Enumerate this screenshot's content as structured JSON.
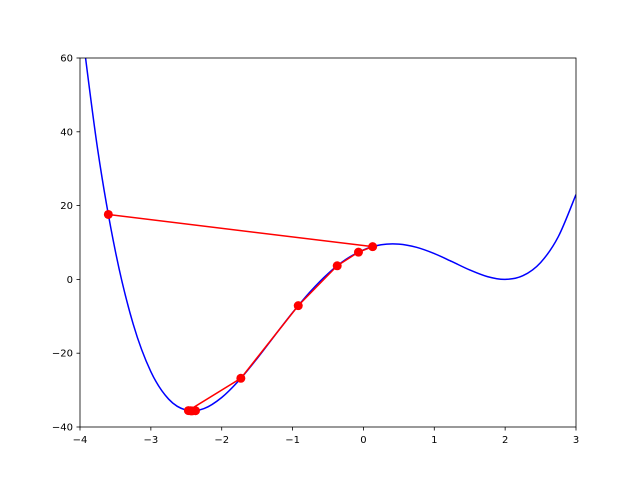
{
  "chart_data": {
    "type": "line",
    "title": "",
    "xlabel": "",
    "ylabel": "",
    "xlim": [
      -4,
      3
    ],
    "ylim": [
      -40,
      60
    ],
    "grid": false,
    "x_ticks": [
      "-4",
      "-3",
      "-2",
      "-1",
      "0",
      "1",
      "2",
      "3"
    ],
    "y_ticks": [
      "-40",
      "-20",
      "0",
      "20",
      "40",
      "60"
    ],
    "series": [
      {
        "color": "#0000ff",
        "marker": "none",
        "x": [
          -4,
          -3.75,
          -3.5,
          -3.25,
          -3,
          -2.75,
          -2.5,
          -2.25,
          -2,
          -1.75,
          -1.5,
          -1.25,
          -1,
          -0.75,
          -0.5,
          -0.25,
          0,
          0.25,
          0.5,
          0.75,
          1,
          1.25,
          1.5,
          1.75,
          2,
          2.25,
          2.5,
          2.75,
          3
        ],
        "y": [
          72,
          35.13,
          7.56,
          -12.06,
          -25,
          -32.43,
          -35.44,
          -35.0,
          -32,
          -27.25,
          -21.44,
          -15.18,
          -9,
          -3.31,
          1.56,
          5.38,
          8,
          9.38,
          9.56,
          8.69,
          7,
          4.82,
          2.56,
          0.75,
          0,
          1.0,
          4.56,
          11.57,
          23
        ]
      },
      {
        "color": "#ff0000",
        "marker": "circle",
        "x": [
          -3.6,
          0.13,
          -0.07,
          -0.37,
          -0.92,
          -1.73,
          -2.47,
          -2.37,
          -2.44,
          -2.42
        ],
        "y": [
          17.6,
          8.87,
          7.39,
          3.69,
          -7.11,
          -26.8,
          -35.55,
          -35.58,
          -35.6,
          -35.64
        ]
      }
    ]
  }
}
